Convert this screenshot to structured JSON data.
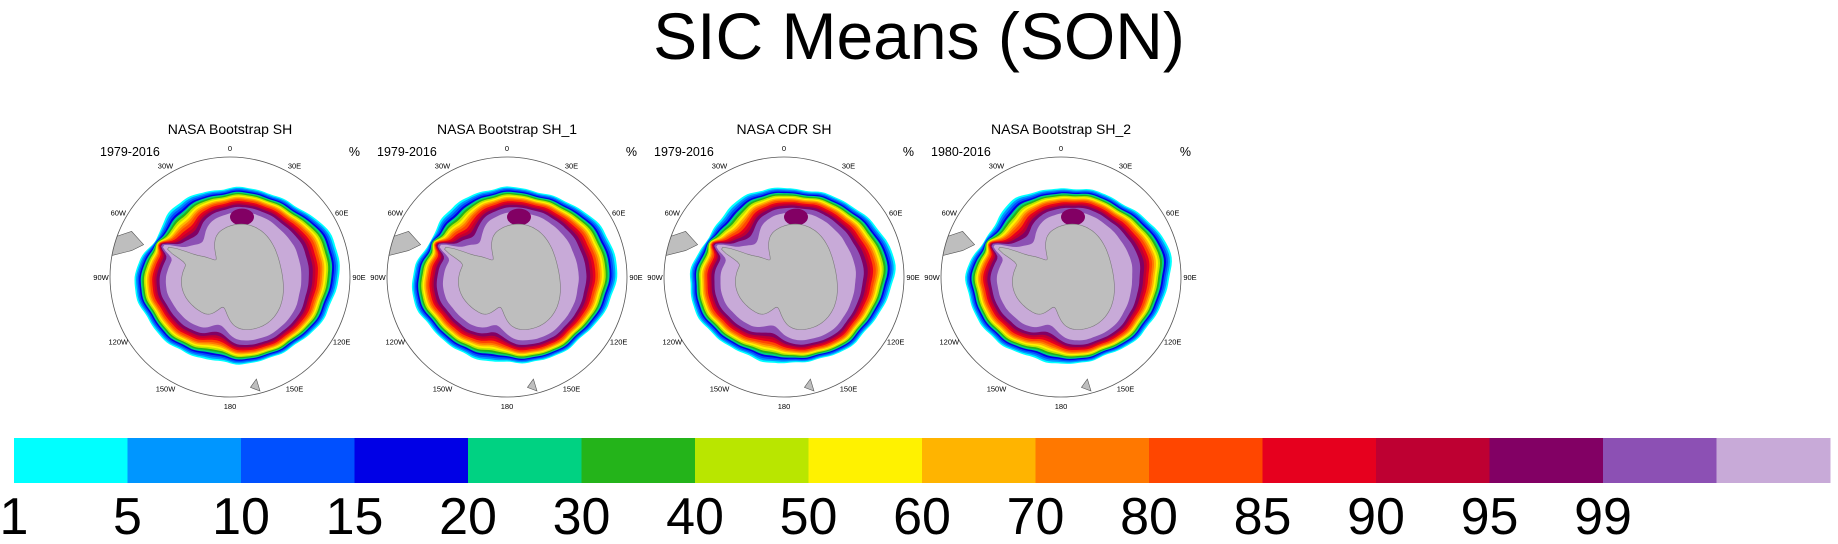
{
  "chart_data": {
    "type": "heatmap",
    "title": "SIC Means (SON)",
    "projection": "south polar stereographic",
    "longitude_labels": [
      "0",
      "30E",
      "60E",
      "90E",
      "120E",
      "150E",
      "180",
      "150W",
      "120W",
      "90W",
      "60W",
      "30W"
    ],
    "panels": [
      {
        "title": "NASA Bootstrap SH",
        "left_string": "1979-2016",
        "right_string": "%"
      },
      {
        "title": "NASA Bootstrap SH_1",
        "left_string": "1979-2016",
        "right_string": "%"
      },
      {
        "title": "NASA CDR SH",
        "left_string": "1979-2016",
        "right_string": "%"
      },
      {
        "title": "NASA Bootstrap SH_2",
        "left_string": "1980-2016",
        "right_string": "%"
      }
    ],
    "colorbar": {
      "levels": [
        "1",
        "5",
        "10",
        "15",
        "20",
        "30",
        "40",
        "50",
        "60",
        "70",
        "80",
        "85",
        "90",
        "95",
        "99"
      ],
      "colors": [
        "#00ffff",
        "#0096ff",
        "#0050ff",
        "#0000e6",
        "#00d282",
        "#24b41a",
        "#b9e600",
        "#fff200",
        "#ffb400",
        "#ff7800",
        "#ff4600",
        "#e6001e",
        "#be0032",
        "#820064",
        "#8c50b4",
        "#c8aad8"
      ]
    },
    "colors": {
      "land": "#bebebe",
      "outline": "#555555",
      "background": "#ffffff"
    }
  }
}
